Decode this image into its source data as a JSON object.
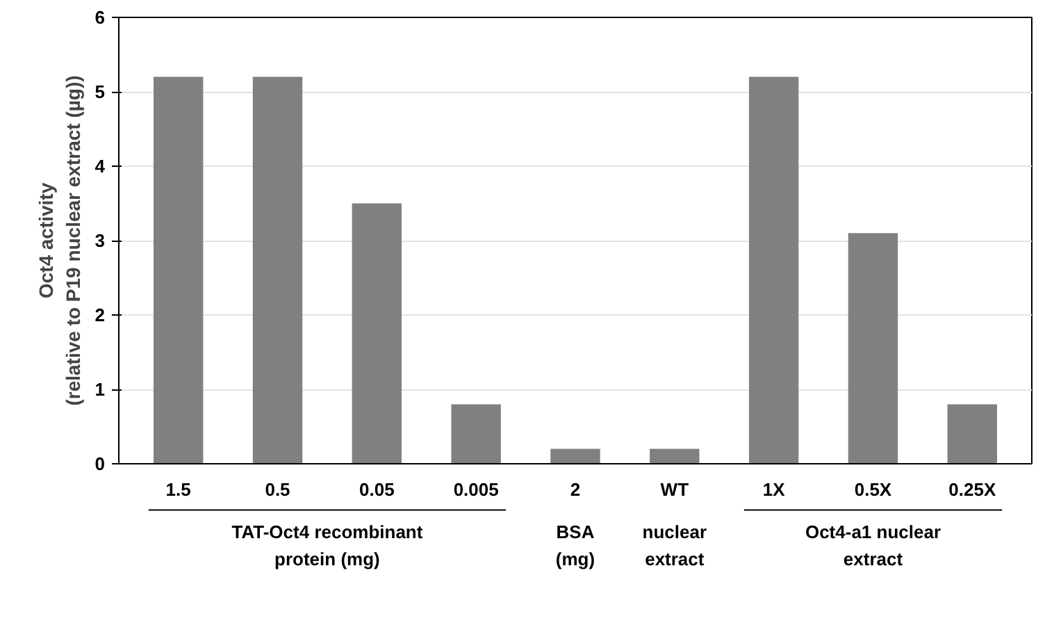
{
  "chart_data": {
    "type": "bar",
    "ylabel": "Oct4 activity\n(relative to P19 nuclear extract (µg))",
    "categories": [
      "1.5",
      "0.5",
      "0.05",
      "0.005",
      "2",
      "WT",
      "1X",
      "0.5X",
      "0.25X"
    ],
    "values": [
      5.2,
      5.2,
      3.5,
      0.8,
      0.2,
      0.2,
      5.2,
      3.1,
      0.8
    ],
    "color": "#808080",
    "ylim": [
      0,
      6
    ],
    "yticks": [
      0,
      1,
      2,
      3,
      4,
      5,
      6
    ],
    "grid": "y",
    "annotations": [
      "TAT-Oct4 recombinant\nprotein (mg)",
      "BSA\n(mg)",
      "nuclear\nextract",
      "Oct4-a1 nuclear\nextract"
    ]
  }
}
